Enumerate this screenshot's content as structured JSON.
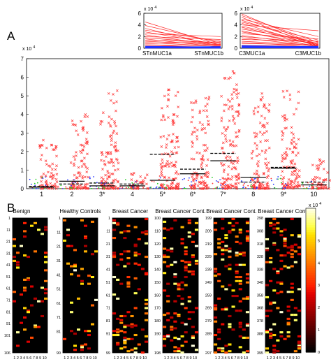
{
  "panel_a_label": "A",
  "panel_b_label": "B",
  "chart_data": [
    {
      "type": "line",
      "id": "inset-stn",
      "categories": [
        "STnMUC1a",
        "STnMUC1b"
      ],
      "y_scale_label": "x 10^4",
      "y_scale_base": "x 10",
      "y_scale_exp": "4",
      "yticks": [
        0,
        2,
        4,
        6
      ],
      "ylim": [
        0,
        6
      ],
      "series_red": [
        [
          4.5,
          0.5
        ],
        [
          3.9,
          0.9
        ],
        [
          3.4,
          0.3
        ],
        [
          3.1,
          1.2
        ],
        [
          2.8,
          0.6
        ],
        [
          2.5,
          2.0
        ],
        [
          2.3,
          0.4
        ],
        [
          2.0,
          1.5
        ],
        [
          1.8,
          0.8
        ],
        [
          1.6,
          0.2
        ],
        [
          1.4,
          1.0
        ],
        [
          1.2,
          0.6
        ],
        [
          1.0,
          0.3
        ],
        [
          0.8,
          1.1
        ],
        [
          0.6,
          0.4
        ],
        [
          0.4,
          0.2
        ],
        [
          0.3,
          0.7
        ]
      ],
      "series_blue": [
        [
          0.2,
          0.1
        ],
        [
          0.15,
          0.25
        ],
        [
          0.1,
          0.05
        ],
        [
          0.3,
          0.15
        ],
        [
          0.05,
          0.2
        ]
      ]
    },
    {
      "type": "line",
      "id": "inset-c3",
      "categories": [
        "C3MUC1a",
        "C3MUC1b"
      ],
      "y_scale_label": "x 10^4",
      "y_scale_base": "x 10",
      "y_scale_exp": "4",
      "yticks": [
        0,
        2,
        4,
        6
      ],
      "ylim": [
        0,
        6
      ],
      "series_red": [
        [
          5.9,
          0.4
        ],
        [
          5.6,
          1.0
        ],
        [
          5.3,
          0.2
        ],
        [
          5.0,
          2.0
        ],
        [
          4.8,
          0.6
        ],
        [
          4.5,
          1.4
        ],
        [
          4.3,
          0.3
        ],
        [
          4.0,
          3.0
        ],
        [
          3.8,
          0.8
        ],
        [
          3.6,
          0.5
        ],
        [
          3.3,
          1.1
        ],
        [
          3.0,
          0.2
        ],
        [
          2.8,
          0.7
        ],
        [
          2.5,
          1.6
        ],
        [
          2.2,
          0.4
        ],
        [
          2.0,
          0.9
        ],
        [
          1.8,
          0.3
        ],
        [
          1.5,
          1.2
        ],
        [
          1.2,
          0.5
        ],
        [
          1.0,
          0.2
        ],
        [
          0.8,
          0.6
        ],
        [
          0.5,
          0.3
        ]
      ],
      "series_blue": [
        [
          0.3,
          0.1
        ],
        [
          0.2,
          0.3
        ],
        [
          0.1,
          0.05
        ],
        [
          0.4,
          0.2
        ],
        [
          0.15,
          0.1
        ]
      ]
    },
    {
      "type": "scatter",
      "id": "panel-a-main",
      "x_categories": [
        "1",
        "2",
        "3*",
        "4",
        "5*",
        "6*",
        "7*",
        "8",
        "9*",
        "10"
      ],
      "y_scale_label": "x 10^4",
      "y_scale_base": "x 10",
      "y_scale_exp": "4",
      "yticks": [
        0,
        1,
        2,
        3,
        4,
        5,
        6,
        7
      ],
      "ylim": [
        0,
        7
      ],
      "solid_line_values": [
        0.08,
        0.4,
        0.15,
        0.15,
        0.45,
        0.8,
        1.5,
        0.6,
        1.1,
        0.2
      ],
      "dashed_line_values": [
        0.12,
        0.25,
        0.3,
        0.25,
        1.85,
        1.05,
        1.9,
        0.35,
        1.15,
        0.35
      ],
      "max_values": [
        2.8,
        4.1,
        5.3,
        0.9,
        5.5,
        5.0,
        6.5,
        5.4,
        5.3,
        1.6
      ]
    },
    {
      "type": "heatmap",
      "id": "panel-b",
      "x_ticks": [
        "1",
        "2",
        "3",
        "4",
        "5",
        "6",
        "7",
        "8",
        "9",
        "10"
      ],
      "colorbar_ticks": [
        "0",
        "1",
        "2",
        "3",
        "4",
        "5",
        "6"
      ],
      "colorbar_scale_base": "x 10",
      "colorbar_scale_exp": "4",
      "colorbar_label": "x 10^4",
      "panels": [
        {
          "title": "Benign",
          "yticks": [
            "1",
            "11",
            "21",
            "31",
            "41",
            "51",
            "61",
            "71",
            "81",
            "91",
            "101",
            "106"
          ]
        },
        {
          "title": "Healthy Controls",
          "yticks": [
            "1",
            "11",
            "21",
            "31",
            "41",
            "51",
            "61",
            "71",
            "81",
            "90"
          ]
        },
        {
          "title": "Breast Cancer",
          "yticks": [
            "1",
            "11",
            "21",
            "31",
            "41",
            "51",
            "61",
            "71",
            "81",
            "91",
            "99"
          ]
        },
        {
          "title": "Breast Cancer Cont.",
          "yticks": [
            "100",
            "110",
            "120",
            "130",
            "140",
            "150",
            "160",
            "170",
            "180",
            "190",
            "198"
          ]
        },
        {
          "title": "Breast Cancer Cont.",
          "yticks": [
            "199",
            "209",
            "219",
            "229",
            "239",
            "249",
            "259",
            "269",
            "279",
            "289",
            "297"
          ]
        },
        {
          "title": "Breast Cancer Cont.",
          "yticks": [
            "298",
            "308",
            "318",
            "328",
            "338",
            "348",
            "358",
            "368",
            "378",
            "388",
            "395"
          ]
        }
      ]
    }
  ]
}
